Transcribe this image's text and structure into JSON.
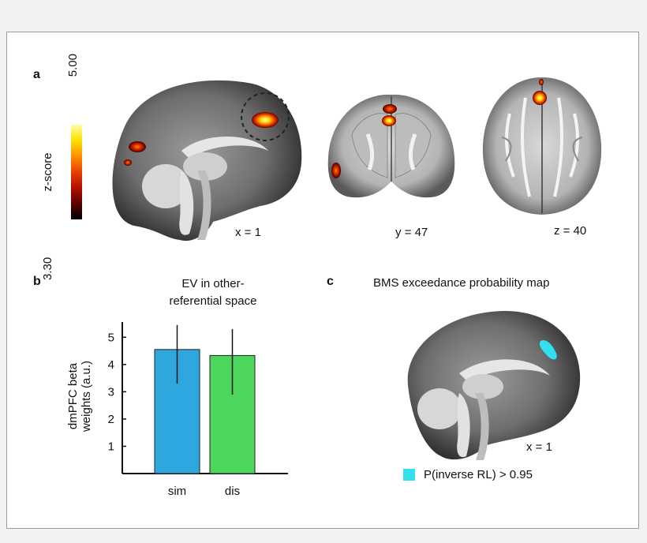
{
  "panel_a": {
    "letter": "a",
    "colorbar": {
      "label": "z-score",
      "max": "5.00",
      "min": "3.30",
      "colors": [
        "#000000",
        "#5a0000",
        "#b01000",
        "#e84000",
        "#ff9000",
        "#ffe000",
        "#ffffa0"
      ]
    },
    "slices": [
      {
        "view": "sagittal",
        "label": "x = 1"
      },
      {
        "view": "coronal",
        "label": "y = 47"
      },
      {
        "view": "axial",
        "label": "z = 40"
      }
    ]
  },
  "panel_b": {
    "letter": "b",
    "title_line1": "EV in other-",
    "title_line2": "referential space",
    "chart_data": {
      "type": "bar",
      "title": "EV in other-referential space",
      "categories": [
        "sim",
        "dis"
      ],
      "values": [
        4.55,
        4.33
      ],
      "error_low": [
        3.3,
        2.9
      ],
      "error_high": [
        5.45,
        5.3
      ],
      "colors": [
        "#2ea6de",
        "#4dd65c"
      ],
      "xlabel": "",
      "ylabel_line1": "dmPFC beta",
      "ylabel_line2": "weights (a.u.)",
      "ylim": [
        0,
        5.5
      ],
      "yticks": [
        1,
        2,
        3,
        4,
        5
      ],
      "grid": false
    }
  },
  "panel_c": {
    "letter": "c",
    "title": "BMS exceedance probability map",
    "slice_label": "x = 1",
    "legend_text": "P(inverse RL) > 0.95",
    "legend_color": "#33e0f0"
  }
}
